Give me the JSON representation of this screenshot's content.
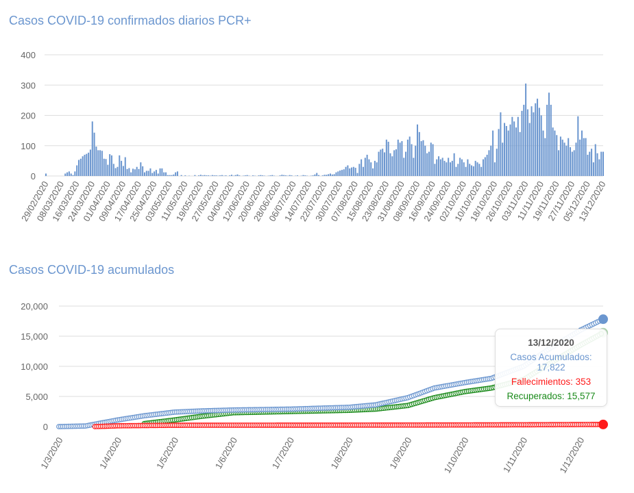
{
  "chart_data": [
    {
      "type": "bar",
      "title": "Casos COVID-19 confirmados diarios PCR+",
      "color": "#6b96cf",
      "ylim": [
        0,
        400
      ],
      "yticks": [
        "0",
        "100",
        "200",
        "300",
        "400"
      ],
      "grid": true,
      "start_date": "29/02/2020",
      "end_date": "13/12/2020",
      "xtick_labels": [
        "29/02/2020",
        "08/03/2020",
        "16/03/2020",
        "24/03/2020",
        "01/04/2020",
        "09/04/2020",
        "17/04/2020",
        "25/04/2020",
        "03/05/2020",
        "11/05/2020",
        "19/05/2020",
        "27/05/2020",
        "04/06/2020",
        "12/06/2020",
        "20/06/2020",
        "28/06/2020",
        "06/07/2020",
        "14/07/2020",
        "22/07/2020",
        "30/07/2020",
        "07/08/2020",
        "15/08/2020",
        "23/08/2020",
        "31/08/2020",
        "08/09/2020",
        "16/09/2020",
        "24/09/2020",
        "02/10/2020",
        "10/10/2020",
        "18/10/2020",
        "26/10/2020",
        "03/11/2020",
        "11/11/2020",
        "19/11/2020",
        "27/11/2020",
        "05/12/2020",
        "13/12/2020"
      ],
      "values": [
        8,
        0,
        0,
        0,
        0,
        0,
        0,
        0,
        0,
        0,
        8,
        12,
        15,
        8,
        3,
        15,
        35,
        53,
        57,
        65,
        70,
        73,
        77,
        87,
        180,
        143,
        97,
        85,
        85,
        83,
        57,
        56,
        37,
        72,
        68,
        40,
        26,
        30,
        68,
        50,
        33,
        62,
        23,
        26,
        12,
        24,
        22,
        30,
        23,
        45,
        32,
        12,
        17,
        17,
        25,
        10,
        15,
        20,
        8,
        25,
        25,
        12,
        12,
        3,
        3,
        3,
        5,
        12,
        15,
        0,
        3,
        0,
        2,
        0,
        1,
        0,
        0,
        3,
        0,
        2,
        4,
        2,
        3,
        2,
        2,
        1,
        3,
        2,
        2,
        1,
        2,
        3,
        1,
        2,
        0,
        2,
        4,
        1,
        3,
        5,
        2,
        0,
        1,
        2,
        3,
        1,
        0,
        2,
        1,
        0,
        2,
        3,
        2,
        1,
        0,
        1,
        2,
        3,
        1,
        0,
        0,
        2,
        4,
        3,
        2,
        1,
        3,
        2,
        0,
        1,
        2,
        0,
        1,
        3,
        2,
        1,
        0,
        1,
        2,
        5,
        10,
        3,
        0,
        2,
        4,
        4,
        6,
        8,
        5,
        6,
        12,
        15,
        18,
        20,
        22,
        30,
        35,
        25,
        28,
        30,
        27,
        10,
        40,
        55,
        30,
        60,
        70,
        55,
        45,
        25,
        50,
        45,
        80,
        87,
        90,
        78,
        120,
        113,
        75,
        65,
        85,
        88,
        120,
        110,
        115,
        60,
        80,
        120,
        130,
        105,
        60,
        100,
        170,
        145,
        115,
        118,
        100,
        75,
        80,
        110,
        105,
        40,
        55,
        65,
        55,
        60,
        50,
        45,
        60,
        45,
        50,
        75,
        30,
        40,
        60,
        55,
        45,
        30,
        55,
        40,
        35,
        32,
        50,
        45,
        40,
        30,
        55,
        62,
        70,
        85,
        100,
        150,
        45,
        90,
        155,
        210,
        110,
        175,
        165,
        150,
        170,
        195,
        180,
        160,
        195,
        145,
        215,
        235,
        305,
        220,
        175,
        230,
        210,
        240,
        255,
        225,
        200,
        150,
        125,
        235,
        275,
        235,
        160,
        150,
        135,
        85,
        130,
        120,
        110,
        100,
        125,
        95,
        80,
        85,
        110,
        197,
        120,
        150,
        125,
        125,
        70,
        80,
        90,
        45,
        105,
        75,
        55,
        80,
        80
      ]
    },
    {
      "type": "line",
      "title": "Casos COVID-19 acumulados",
      "ylim": [
        0,
        20000
      ],
      "yticks": [
        "0",
        "5,000",
        "10,000",
        "15,000",
        "20,000"
      ],
      "grid": true,
      "xtick_labels": [
        "1/3/2020",
        "1/4/2020",
        "1/5/2020",
        "1/6/2020",
        "1/7/2020",
        "1/8/2020",
        "1/9/2020",
        "1/10/2020",
        "1/11/2020",
        "1/12/2020"
      ],
      "x_range": [
        "2020-03-01",
        "2020-12-13"
      ],
      "series": [
        {
          "name": "Casos Acumulados",
          "color": "#6b96cf",
          "points": [
            [
              "2020-03-01",
              0
            ],
            [
              "2020-03-15",
              100
            ],
            [
              "2020-03-20",
              400
            ],
            [
              "2020-04-01",
              1100
            ],
            [
              "2020-04-15",
              1800
            ],
            [
              "2020-05-01",
              2400
            ],
            [
              "2020-05-15",
              2600
            ],
            [
              "2020-06-01",
              2750
            ],
            [
              "2020-07-01",
              2900
            ],
            [
              "2020-08-01",
              3200
            ],
            [
              "2020-08-15",
              3600
            ],
            [
              "2020-09-01",
              4800
            ],
            [
              "2020-09-15",
              6400
            ],
            [
              "2020-10-01",
              7300
            ],
            [
              "2020-10-15",
              8000
            ],
            [
              "2020-11-01",
              10000
            ],
            [
              "2020-11-15",
              13000
            ],
            [
              "2020-12-01",
              16000
            ],
            [
              "2020-12-13",
              17822
            ]
          ]
        },
        {
          "name": "Recuperados",
          "color": "#1a8a1a",
          "points": [
            [
              "2020-04-15",
              500
            ],
            [
              "2020-05-01",
              1100
            ],
            [
              "2020-05-15",
              1700
            ],
            [
              "2020-06-01",
              2300
            ],
            [
              "2020-07-01",
              2500
            ],
            [
              "2020-08-01",
              2700
            ],
            [
              "2020-08-15",
              2900
            ],
            [
              "2020-09-01",
              3500
            ],
            [
              "2020-09-15",
              4800
            ],
            [
              "2020-10-01",
              5800
            ],
            [
              "2020-10-15",
              6400
            ],
            [
              "2020-11-01",
              7800
            ],
            [
              "2020-11-15",
              10500
            ],
            [
              "2020-12-01",
              13500
            ],
            [
              "2020-12-13",
              15577
            ]
          ]
        },
        {
          "name": "Fallecimientos",
          "color": "#ff1a1a",
          "points": [
            [
              "2020-03-20",
              0
            ],
            [
              "2020-03-25",
              50
            ],
            [
              "2020-04-01",
              130
            ],
            [
              "2020-05-01",
              220
            ],
            [
              "2020-08-01",
              240
            ],
            [
              "2020-10-01",
              270
            ],
            [
              "2020-11-01",
              300
            ],
            [
              "2020-12-13",
              353
            ]
          ]
        }
      ],
      "tooltip": {
        "date": "13/12/2020",
        "casos": "Casos Acumulados: 17,822",
        "fallecimientos": "Fallecimientos: 353",
        "recuperados": "Recuperados: 15,577"
      }
    }
  ]
}
